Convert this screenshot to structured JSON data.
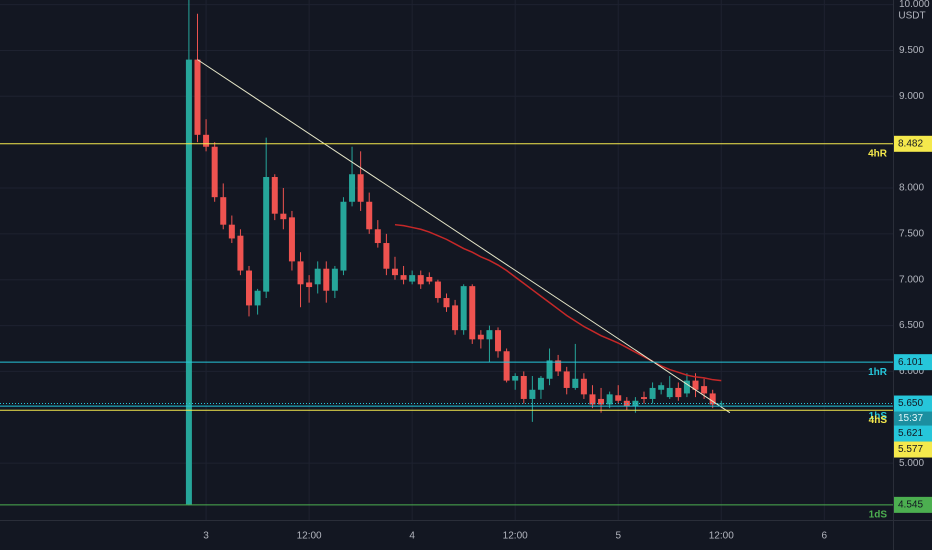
{
  "chart_data": {
    "type": "candlestick",
    "currency": "USDT",
    "x": [
      -2,
      -1,
      0,
      1,
      2,
      3,
      4,
      5,
      6,
      7,
      8,
      9,
      10,
      11,
      12,
      13,
      14,
      15,
      16,
      17,
      18,
      19,
      20,
      21,
      22,
      23,
      24,
      25,
      26,
      27,
      28,
      29,
      30,
      31,
      32,
      33,
      34,
      35,
      36,
      37,
      38,
      39,
      40,
      41,
      42,
      43,
      44,
      45,
      46,
      47,
      48,
      49,
      50,
      51,
      52,
      53,
      54,
      55,
      56,
      57,
      58,
      59,
      60
    ],
    "open": [
      4.55,
      9.4,
      8.58,
      8.45,
      7.9,
      7.6,
      7.48,
      7.1,
      6.72,
      6.87,
      8.12,
      7.72,
      7.68,
      7.2,
      6.97,
      6.95,
      7.12,
      6.88,
      7.1,
      7.85,
      8.15,
      7.85,
      7.55,
      7.4,
      7.12,
      7.05,
      6.98,
      7.05,
      7.03,
      6.98,
      6.8,
      6.72,
      6.45,
      6.93,
      6.4,
      6.35,
      6.45,
      6.22,
      5.9,
      5.95,
      5.7,
      5.8,
      5.92,
      6.12,
      6.0,
      5.82,
      5.92,
      5.75,
      5.7,
      5.64,
      5.74,
      5.68,
      5.62,
      5.72,
      5.7,
      5.8,
      5.72,
      5.82,
      5.76,
      5.9,
      5.84,
      5.76,
      5.64
    ],
    "high": [
      10.05,
      9.9,
      8.75,
      8.5,
      8.05,
      7.7,
      7.55,
      7.15,
      6.9,
      8.55,
      8.15,
      8.0,
      7.75,
      7.3,
      7.05,
      7.2,
      7.2,
      7.15,
      7.9,
      8.45,
      8.4,
      7.95,
      7.65,
      7.5,
      7.25,
      7.15,
      7.1,
      7.1,
      7.08,
      7.0,
      6.85,
      6.78,
      6.95,
      6.95,
      6.45,
      6.5,
      6.48,
      6.25,
      5.98,
      6.0,
      5.95,
      5.95,
      6.25,
      6.18,
      6.05,
      6.3,
      5.98,
      5.85,
      5.82,
      5.78,
      5.85,
      5.72,
      5.72,
      5.78,
      5.88,
      5.88,
      5.95,
      5.88,
      5.98,
      5.98,
      5.92,
      5.8,
      5.68
    ],
    "low": [
      4.54,
      8.5,
      8.4,
      7.85,
      7.55,
      7.4,
      7.05,
      6.6,
      6.62,
      6.8,
      7.65,
      7.55,
      7.1,
      6.7,
      6.75,
      6.85,
      6.75,
      6.8,
      7.05,
      7.8,
      7.75,
      7.5,
      7.35,
      7.05,
      7.0,
      6.95,
      6.95,
      6.9,
      6.95,
      6.75,
      6.65,
      6.4,
      6.4,
      6.3,
      6.25,
      6.1,
      6.15,
      5.88,
      5.8,
      5.65,
      5.45,
      5.7,
      5.85,
      5.95,
      5.75,
      5.8,
      5.7,
      5.6,
      5.55,
      5.6,
      5.65,
      5.58,
      5.55,
      5.65,
      5.65,
      5.75,
      5.7,
      5.68,
      5.72,
      5.72,
      5.7,
      5.6,
      5.62
    ],
    "close": [
      9.4,
      8.58,
      8.45,
      7.9,
      7.6,
      7.45,
      7.1,
      6.72,
      6.88,
      8.12,
      7.72,
      7.66,
      7.2,
      6.95,
      6.92,
      7.12,
      6.88,
      7.12,
      7.85,
      8.15,
      7.85,
      7.55,
      7.4,
      7.12,
      7.05,
      7.0,
      7.05,
      6.95,
      6.98,
      6.8,
      6.7,
      6.45,
      6.93,
      6.35,
      6.35,
      6.45,
      6.22,
      5.9,
      5.95,
      5.7,
      5.8,
      5.93,
      6.12,
      6.0,
      5.82,
      5.92,
      5.75,
      5.64,
      5.64,
      5.75,
      5.68,
      5.62,
      5.68,
      5.7,
      5.82,
      5.85,
      5.82,
      5.72,
      5.9,
      5.8,
      5.76,
      5.64,
      5.65
    ],
    "up_color": "#26a69a",
    "down_color": "#ef5350",
    "xlim": [
      -24,
      80
    ],
    "xticks": [
      {
        "value": 0,
        "label": "3"
      },
      {
        "value": 12,
        "label": "12:00"
      },
      {
        "value": 24,
        "label": "4"
      },
      {
        "value": 36,
        "label": "12:00"
      },
      {
        "value": 48,
        "label": "5"
      },
      {
        "value": 60,
        "label": "12:00"
      },
      {
        "value": 72,
        "label": "6"
      }
    ],
    "ylim": [
      4.38,
      10.05
    ],
    "yticks": [
      {
        "value": 10,
        "label": "10.000"
      },
      {
        "value": 9.5,
        "label": "9.500"
      },
      {
        "value": 9,
        "label": "9.000"
      },
      {
        "value": 8,
        "label": "8.000"
      },
      {
        "value": 7.5,
        "label": "7.500"
      },
      {
        "value": 7,
        "label": "7.000"
      },
      {
        "value": 6.5,
        "label": "6.500"
      },
      {
        "value": 6,
        "label": "6.000"
      },
      {
        "value": 5,
        "label": "5.000"
      }
    ],
    "grid": true,
    "moving_average": {
      "color": "#c62828",
      "values": [
        null,
        null,
        null,
        null,
        null,
        null,
        null,
        null,
        null,
        null,
        null,
        null,
        null,
        null,
        null,
        null,
        null,
        null,
        null,
        null,
        null,
        null,
        null,
        null,
        7.6,
        7.59,
        7.57,
        7.55,
        7.52,
        7.48,
        7.44,
        7.39,
        7.34,
        7.3,
        7.25,
        7.21,
        7.16,
        7.1,
        7.03,
        6.96,
        6.89,
        6.82,
        6.75,
        6.68,
        6.61,
        6.55,
        6.49,
        6.44,
        6.39,
        6.35,
        6.31,
        6.26,
        6.21,
        6.16,
        6.11,
        6.06,
        6.02,
        5.99,
        5.96,
        5.94,
        5.93,
        5.91,
        5.9
      ]
    },
    "trend_line": {
      "color": "#e6e6c8",
      "x": [
        -1,
        61
      ],
      "y": [
        9.4,
        5.55
      ]
    },
    "levels": [
      {
        "name": "4hR",
        "value": 8.482,
        "label": "8.482",
        "color": "#f5e94c"
      },
      {
        "name": "1hR",
        "value": 6.101,
        "label": "6.101",
        "color": "#26c6da"
      },
      {
        "name": "1hS",
        "value": 5.621,
        "label": "5.621",
        "color": "#26c6da"
      },
      {
        "name": "4hS",
        "value": 5.577,
        "label": "5.577",
        "color": "#f5e94c"
      },
      {
        "name": "1dS",
        "value": 4.545,
        "label": "4.545",
        "color": "#4caf50"
      }
    ],
    "last_price": {
      "value": 5.65,
      "label": "5.650",
      "countdown": "15:37",
      "color": "#26c6da"
    }
  }
}
